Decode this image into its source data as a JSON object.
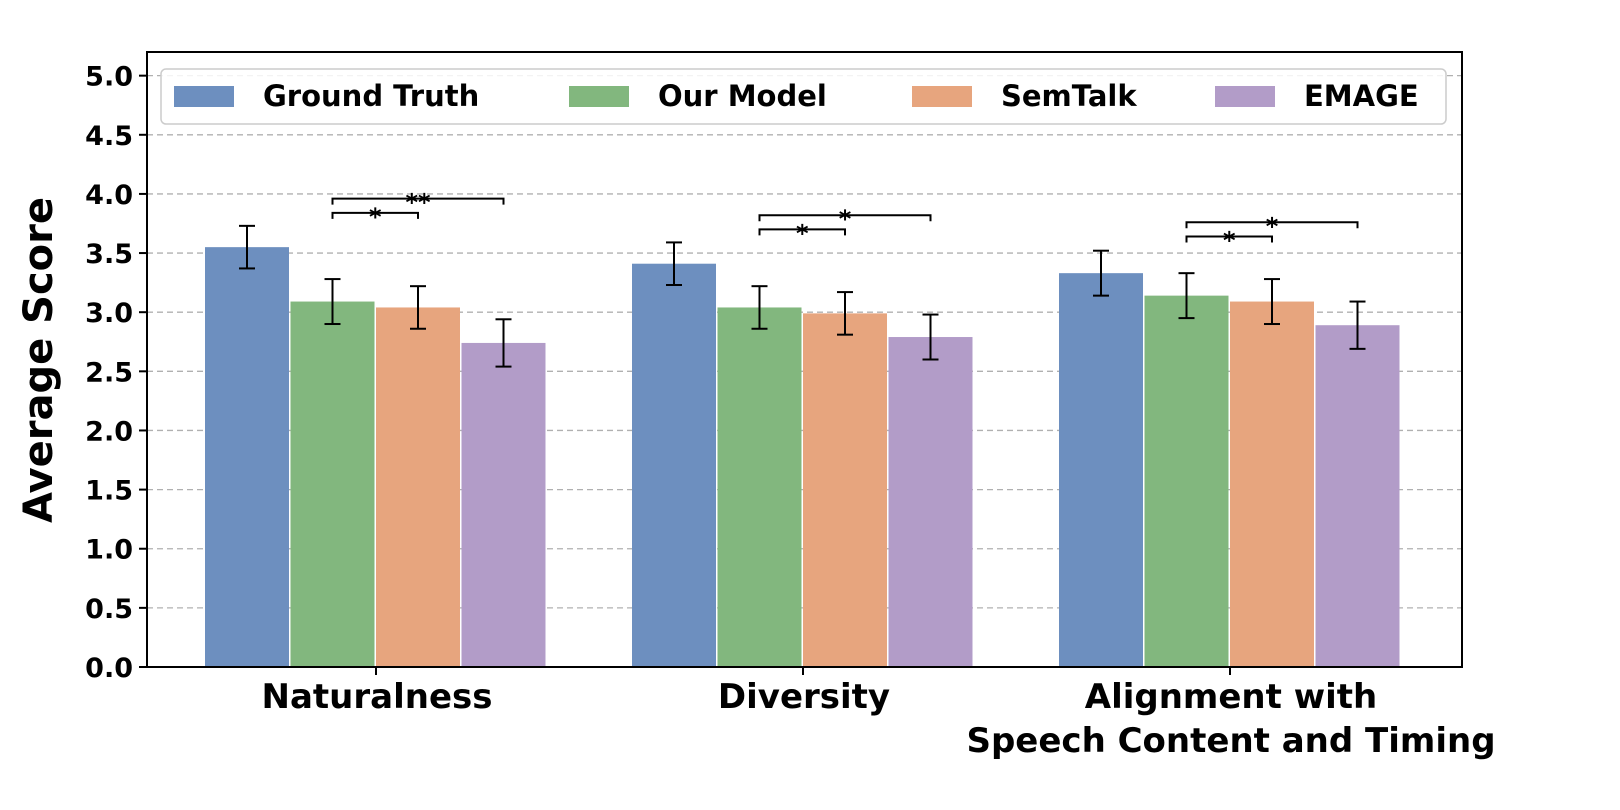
{
  "chart_data": {
    "type": "bar",
    "title": "",
    "xlabel": "",
    "ylabel": "Average Score",
    "ylim": [
      0,
      5.2
    ],
    "yticks": [
      "0.0",
      "0.5",
      "1.0",
      "1.5",
      "2.0",
      "2.5",
      "3.0",
      "3.5",
      "4.0",
      "4.5",
      "5.0"
    ],
    "grid": "horizontal dashed",
    "legend_position": "top",
    "categories": [
      [
        "Naturalness"
      ],
      [
        "Diversity"
      ],
      [
        "Alignment with",
        "Speech Content and Timing"
      ]
    ],
    "series": [
      {
        "name": "Ground Truth",
        "color": "#6d8fbf",
        "values": [
          3.55,
          3.41,
          3.33
        ],
        "errors": [
          0.18,
          0.18,
          0.19
        ]
      },
      {
        "name": "Our Model",
        "color": "#82b77e",
        "values": [
          3.09,
          3.04,
          3.14
        ],
        "errors": [
          0.19,
          0.18,
          0.19
        ]
      },
      {
        "name": "SemTalk",
        "color": "#e7a57e",
        "values": [
          3.04,
          2.99,
          3.09
        ],
        "errors": [
          0.18,
          0.18,
          0.19
        ]
      },
      {
        "name": "EMAGE",
        "color": "#b29cc8",
        "values": [
          2.74,
          2.79,
          2.89
        ],
        "errors": [
          0.2,
          0.19,
          0.2
        ]
      }
    ],
    "significance": [
      {
        "category": 0,
        "from": 1,
        "to": 2,
        "label": "*",
        "y": 3.84
      },
      {
        "category": 0,
        "from": 1,
        "to": 3,
        "label": "**",
        "y": 3.96
      },
      {
        "category": 1,
        "from": 1,
        "to": 2,
        "label": "*",
        "y": 3.7
      },
      {
        "category": 1,
        "from": 1,
        "to": 3,
        "label": "*",
        "y": 3.82
      },
      {
        "category": 2,
        "from": 1,
        "to": 2,
        "label": "*",
        "y": 3.64
      },
      {
        "category": 2,
        "from": 1,
        "to": 3,
        "label": "*",
        "y": 3.76
      }
    ]
  }
}
